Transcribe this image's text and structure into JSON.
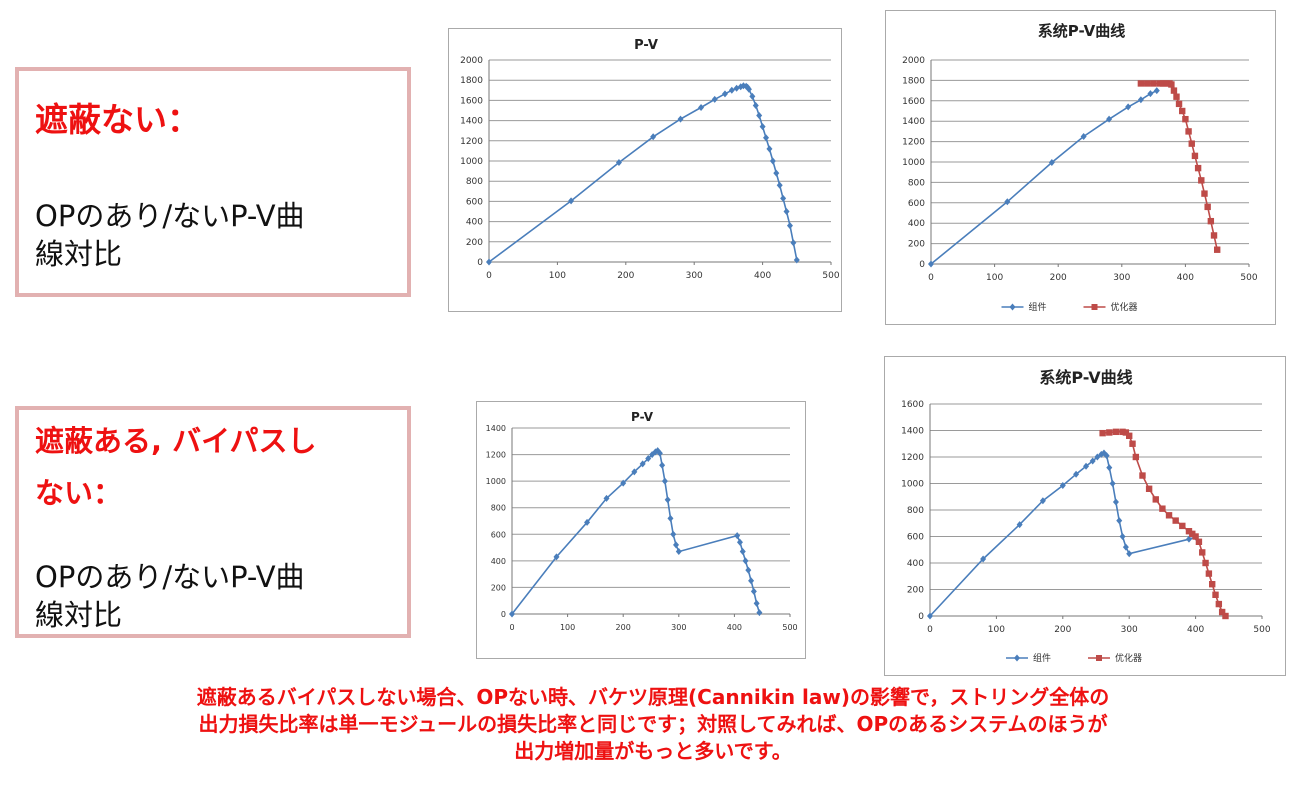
{
  "notes": [
    {
      "heading": "遮蔽ない：",
      "body_line1": "OPのあり/ないP-V曲",
      "body_line2": "線対比"
    },
    {
      "heading_line1": "遮蔽ある, バイパスし",
      "heading_line2": "ない：",
      "body_line1": "OPのあり/ないP-V曲",
      "body_line2": "線対比"
    }
  ],
  "caption": {
    "line1": "遮蔽あるバイパスしない場合、OPない時、バケツ原理(Cannikin law)の影響で，ストリング全体の",
    "line2": "出力損失比率は単一モジュールの損失比率と同じです；対照してみれば、OPのあるシステムのほうが",
    "line3": "出力増加量がもっと多いです。"
  },
  "colors": {
    "series_module": "#4a7ebb",
    "series_optimizer": "#be4b48",
    "accent_red": "#ee1111",
    "note_border": "#e2b1b1"
  },
  "chart_data": [
    {
      "type": "line",
      "title": "P-V",
      "xlabel": "",
      "ylabel": "",
      "xlim": [
        0,
        500
      ],
      "ylim": [
        0,
        2000
      ],
      "xticks": [
        0,
        100,
        200,
        300,
        400,
        500
      ],
      "yticks": [
        0,
        200,
        400,
        600,
        800,
        1000,
        1200,
        1400,
        1600,
        1800,
        2000
      ],
      "grid": "horizontal",
      "legend": null,
      "series": [
        {
          "color": "#4a7ebb",
          "x": [
            0,
            120,
            190,
            240,
            280,
            310,
            330,
            345,
            355,
            362,
            368,
            372,
            376,
            378,
            380,
            385,
            390,
            395,
            400,
            405,
            410,
            415,
            420,
            425,
            430,
            435,
            440,
            445,
            450
          ],
          "y": [
            0,
            605,
            985,
            1240,
            1415,
            1530,
            1610,
            1665,
            1700,
            1720,
            1735,
            1745,
            1740,
            1730,
            1710,
            1640,
            1550,
            1450,
            1340,
            1230,
            1120,
            1000,
            880,
            760,
            630,
            500,
            360,
            190,
            20
          ]
        }
      ]
    },
    {
      "type": "line",
      "title": "系统P-V曲线",
      "xlabel": "",
      "ylabel": "",
      "xlim": [
        0,
        500
      ],
      "ylim": [
        0,
        2000
      ],
      "xticks": [
        0,
        100,
        200,
        300,
        400,
        500
      ],
      "yticks": [
        0,
        200,
        400,
        600,
        800,
        1000,
        1200,
        1400,
        1600,
        1800,
        2000
      ],
      "grid": "horizontal",
      "legend": "bottom",
      "series": [
        {
          "name": "组件",
          "color": "#4a7ebb",
          "marker": "diamond",
          "x": [
            0,
            120,
            190,
            240,
            280,
            310,
            330,
            345,
            355
          ],
          "y": [
            0,
            610,
            995,
            1250,
            1420,
            1540,
            1610,
            1670,
            1700
          ]
        },
        {
          "name": "优化器",
          "color": "#be4b48",
          "marker": "square",
          "x": [
            330,
            340,
            350,
            360,
            365,
            370,
            375,
            378,
            382,
            386,
            390,
            395,
            400,
            405,
            410,
            415,
            420,
            425,
            430,
            435,
            440,
            445,
            450
          ],
          "y": [
            1770,
            1770,
            1770,
            1770,
            1770,
            1770,
            1770,
            1760,
            1700,
            1640,
            1570,
            1500,
            1420,
            1300,
            1180,
            1060,
            940,
            820,
            690,
            560,
            420,
            280,
            140
          ]
        }
      ]
    },
    {
      "type": "line",
      "title": "P-V",
      "xlabel": "",
      "ylabel": "",
      "xlim": [
        0,
        500
      ],
      "ylim": [
        0,
        1400
      ],
      "xticks": [
        0,
        100,
        200,
        300,
        400,
        500
      ],
      "yticks": [
        0,
        200,
        400,
        600,
        800,
        1000,
        1200,
        1400
      ],
      "grid": "horizontal",
      "legend": null,
      "series": [
        {
          "color": "#4a7ebb",
          "x": [
            0,
            80,
            135,
            170,
            200,
            220,
            235,
            245,
            252,
            258,
            262,
            266,
            270,
            275,
            280,
            285,
            290,
            295,
            300,
            405,
            410,
            415,
            420,
            425,
            430,
            435,
            440,
            445
          ],
          "y": [
            0,
            430,
            690,
            870,
            985,
            1070,
            1130,
            1170,
            1200,
            1220,
            1230,
            1210,
            1120,
            1000,
            860,
            720,
            600,
            520,
            470,
            590,
            540,
            470,
            400,
            330,
            250,
            170,
            80,
            10
          ]
        }
      ]
    },
    {
      "type": "line",
      "title": "系统P-V曲线",
      "xlabel": "",
      "ylabel": "",
      "xlim": [
        0,
        500
      ],
      "ylim": [
        0,
        1600
      ],
      "xticks": [
        0,
        100,
        200,
        300,
        400,
        500
      ],
      "yticks": [
        0,
        200,
        400,
        600,
        800,
        1000,
        1200,
        1400,
        1600
      ],
      "grid": "horizontal",
      "legend": "bottom",
      "series": [
        {
          "name": "组件",
          "color": "#4a7ebb",
          "marker": "diamond",
          "x": [
            0,
            80,
            135,
            170,
            200,
            220,
            235,
            245,
            252,
            258,
            262,
            266,
            270,
            275,
            280,
            285,
            290,
            295,
            300,
            390,
            400
          ],
          "y": [
            0,
            430,
            690,
            870,
            985,
            1070,
            1130,
            1170,
            1200,
            1220,
            1230,
            1210,
            1120,
            1000,
            860,
            720,
            600,
            520,
            470,
            580,
            595
          ]
        },
        {
          "name": "优化器",
          "color": "#be4b48",
          "marker": "square",
          "x": [
            260,
            270,
            280,
            290,
            295,
            300,
            305,
            310,
            320,
            330,
            340,
            350,
            360,
            370,
            380,
            390,
            395,
            400,
            405,
            410,
            415,
            420,
            425,
            430,
            435,
            440,
            445
          ],
          "y": [
            1380,
            1385,
            1390,
            1390,
            1385,
            1360,
            1300,
            1200,
            1060,
            960,
            880,
            810,
            760,
            720,
            680,
            640,
            620,
            600,
            560,
            480,
            400,
            320,
            240,
            160,
            90,
            30,
            0
          ]
        }
      ]
    }
  ]
}
